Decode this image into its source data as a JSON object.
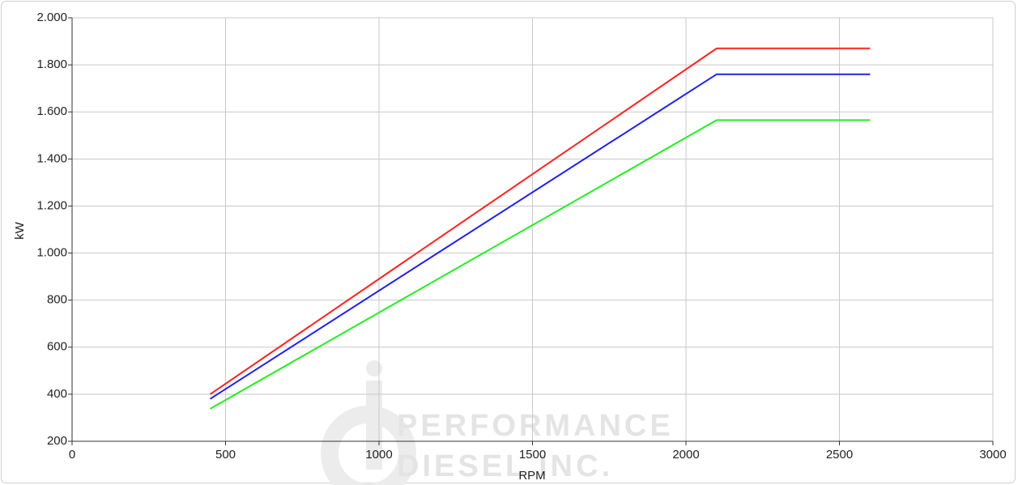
{
  "chart_data": {
    "type": "line",
    "xlabel": "RPM",
    "ylabel": "kW",
    "x": [
      450,
      2100,
      2600
    ],
    "series": [
      {
        "color": "#ff2020",
        "values": [
          400,
          1870,
          1870
        ]
      },
      {
        "color": "#2020ee",
        "values": [
          380,
          1760,
          1760
        ]
      },
      {
        "color": "#22ee22",
        "values": [
          338,
          1565,
          1565
        ]
      }
    ],
    "xlim": [
      0,
      3000
    ],
    "xticks": [
      0,
      500,
      1000,
      1500,
      2000,
      2500,
      3000
    ],
    "ylim": [
      200,
      2000
    ],
    "yticks": [
      200,
      400,
      600,
      800,
      {
        "value": 1000,
        "label": "1.000"
      },
      {
        "value": 1200,
        "label": "1.200"
      },
      {
        "value": 1400,
        "label": "1.400"
      },
      {
        "value": 1600,
        "label": "1.600"
      },
      {
        "value": 1800,
        "label": "1.800"
      },
      {
        "value": 2000,
        "label": "2.000"
      }
    ],
    "grid": true,
    "watermark": [
      "PERFORMANCE",
      "DIESEL INC."
    ]
  }
}
